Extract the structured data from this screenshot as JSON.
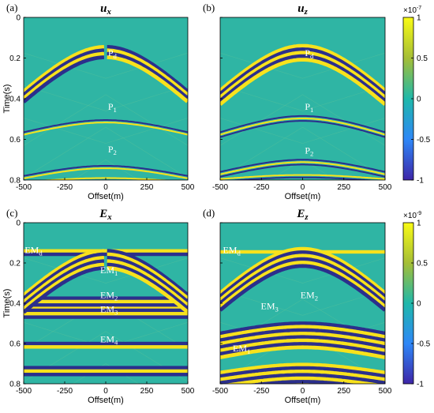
{
  "chart_data": [
    {
      "type": "heatmap",
      "panel_label": "(a)",
      "title": "u",
      "title_sub": "x",
      "xlabel": "Offset(m)",
      "ylabel": "Time(s)",
      "xlim": [
        -500,
        500
      ],
      "ylim": [
        0,
        0.8
      ],
      "xticks": [
        "-500",
        "-250",
        "0",
        "250",
        "500"
      ],
      "yticks": [
        "0",
        "0.2",
        "0.4",
        "0.6",
        "0.8"
      ],
      "annotations": [
        {
          "text": "P",
          "sub": "d",
          "x": 40,
          "t": 0.19
        },
        {
          "text": "P",
          "sub": "1",
          "x": 40,
          "t": 0.455
        },
        {
          "text": "P",
          "sub": "2",
          "x": 40,
          "t": 0.665
        }
      ]
    },
    {
      "type": "heatmap",
      "panel_label": "(b)",
      "title": "u",
      "title_sub": "z",
      "xlabel": "Offset(m)",
      "xlim": [
        -500,
        500
      ],
      "ylim": [
        0,
        0.8
      ],
      "xticks": [
        "-500",
        "-250",
        "0",
        "250",
        "500"
      ],
      "annotations": [
        {
          "text": "P",
          "sub": "d",
          "x": 40,
          "t": 0.19
        },
        {
          "text": "P",
          "sub": "1",
          "x": 40,
          "t": 0.455
        },
        {
          "text": "P",
          "sub": "2",
          "x": 40,
          "t": 0.67
        }
      ]
    },
    {
      "type": "heatmap",
      "panel_label": "(c)",
      "title": "E",
      "title_sub": "x",
      "xlabel": "Offset(m)",
      "ylabel": "Time(s)",
      "xlim": [
        -500,
        500
      ],
      "ylim": [
        0,
        0.8
      ],
      "xticks": [
        "-500",
        "-250",
        "0",
        "250",
        "500"
      ],
      "yticks": [
        "0",
        "0.2",
        "0.4",
        "0.6",
        "0.8"
      ],
      "annotations": [
        {
          "text": "EM",
          "sub": "d",
          "x": -440,
          "t": 0.15
        },
        {
          "text": "EM",
          "sub": "1",
          "x": 20,
          "t": 0.25
        },
        {
          "text": "EM",
          "sub": "2",
          "x": 20,
          "t": 0.375
        },
        {
          "text": "EM",
          "sub": "3",
          "x": 20,
          "t": 0.445
        },
        {
          "text": "EM",
          "sub": "4",
          "x": 20,
          "t": 0.595
        }
      ]
    },
    {
      "type": "heatmap",
      "panel_label": "(d)",
      "title": "E",
      "title_sub": "z",
      "xlabel": "Offset(m)",
      "xlim": [
        -500,
        500
      ],
      "ylim": [
        0,
        0.8
      ],
      "xticks": [
        "-500",
        "-250",
        "0",
        "250",
        "500"
      ],
      "annotations": [
        {
          "text": "EM",
          "sub": "d",
          "x": -430,
          "t": 0.15
        },
        {
          "text": "EM",
          "sub": "2",
          "x": 40,
          "t": 0.375
        },
        {
          "text": "EM",
          "sub": "3",
          "x": -200,
          "t": 0.43
        },
        {
          "text": "EM",
          "sub": "1",
          "x": -370,
          "t": 0.64
        }
      ]
    }
  ],
  "colorbars": [
    {
      "multiplier": "×10",
      "exponent": "-7",
      "ticks": [
        "1",
        "0.5",
        "0",
        "-0.5",
        "-1"
      ],
      "range": [
        -1,
        1
      ]
    },
    {
      "multiplier": "×10",
      "exponent": "-9",
      "ticks": [
        "1",
        "0.5",
        "0",
        "-0.5",
        "-1"
      ],
      "range": [
        -1,
        1
      ]
    }
  ],
  "colors": {
    "background": "#2fb5a4",
    "positive": "#f8e21c",
    "negative": "#2b2f8c"
  }
}
